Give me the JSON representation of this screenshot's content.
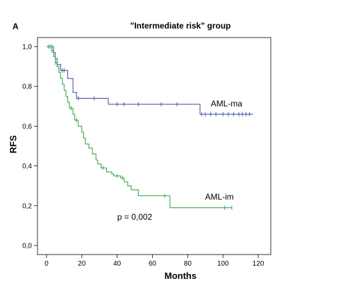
{
  "panel_letter": "A",
  "chart_data": {
    "type": "line",
    "title": "\"Intermediate risk\" group",
    "xlabel": "Months",
    "ylabel": "RFS",
    "xlim": [
      0,
      120
    ],
    "ylim": [
      0,
      1
    ],
    "x_ticks": [
      0,
      20,
      40,
      60,
      80,
      100,
      120
    ],
    "y_ticks": [
      0,
      0.2,
      0.4,
      0.6,
      0.8,
      1.0
    ],
    "y_tick_labels": [
      "0,0",
      "0,2",
      "0,4",
      "0,6",
      "0,8",
      "1,0"
    ],
    "grid": false,
    "series": [
      {
        "name": "AML-ma",
        "color": "#4a5aa8",
        "steps": [
          [
            0,
            1.0
          ],
          [
            4,
            0.97
          ],
          [
            5,
            0.94
          ],
          [
            6,
            0.91
          ],
          [
            8,
            0.88
          ],
          [
            12,
            0.84
          ],
          [
            15,
            0.77
          ],
          [
            17,
            0.74
          ],
          [
            35,
            0.71
          ],
          [
            87,
            0.66
          ],
          [
            117,
            0.66
          ]
        ],
        "censored": [
          [
            1,
            1.0
          ],
          [
            2,
            1.0
          ],
          [
            3,
            1.0
          ],
          [
            4,
            0.97
          ],
          [
            6,
            0.91
          ],
          [
            9,
            0.88
          ],
          [
            10,
            0.88
          ],
          [
            18,
            0.74
          ],
          [
            27,
            0.74
          ],
          [
            40,
            0.71
          ],
          [
            44,
            0.71
          ],
          [
            52,
            0.71
          ],
          [
            65,
            0.71
          ],
          [
            74,
            0.71
          ],
          [
            88,
            0.66
          ],
          [
            90,
            0.66
          ],
          [
            93,
            0.66
          ],
          [
            96,
            0.66
          ],
          [
            100,
            0.66
          ],
          [
            103,
            0.66
          ],
          [
            106,
            0.66
          ],
          [
            109,
            0.66
          ],
          [
            111,
            0.66
          ],
          [
            113,
            0.66
          ],
          [
            115,
            0.66
          ]
        ]
      },
      {
        "name": "AML-im",
        "color": "#3aa84a",
        "steps": [
          [
            0,
            1.0
          ],
          [
            3,
            0.98
          ],
          [
            4,
            0.95
          ],
          [
            5,
            0.92
          ],
          [
            6,
            0.9
          ],
          [
            7,
            0.87
          ],
          [
            8,
            0.84
          ],
          [
            9,
            0.81
          ],
          [
            10,
            0.78
          ],
          [
            11,
            0.75
          ],
          [
            12,
            0.72
          ],
          [
            13,
            0.69
          ],
          [
            15,
            0.66
          ],
          [
            16,
            0.63
          ],
          [
            18,
            0.6
          ],
          [
            20,
            0.57
          ],
          [
            21,
            0.54
          ],
          [
            22,
            0.51
          ],
          [
            24,
            0.49
          ],
          [
            26,
            0.46
          ],
          [
            28,
            0.43
          ],
          [
            29,
            0.41
          ],
          [
            31,
            0.39
          ],
          [
            34,
            0.37
          ],
          [
            37,
            0.36
          ],
          [
            38,
            0.35
          ],
          [
            42,
            0.34
          ],
          [
            44,
            0.32
          ],
          [
            46,
            0.3
          ],
          [
            48,
            0.28
          ],
          [
            52,
            0.25
          ],
          [
            70,
            0.19
          ],
          [
            105,
            0.19
          ]
        ],
        "censored": [
          [
            1,
            1.0
          ],
          [
            2,
            1.0
          ],
          [
            3,
            0.98
          ],
          [
            5,
            0.92
          ],
          [
            14,
            0.69
          ],
          [
            17,
            0.63
          ],
          [
            32,
            0.39
          ],
          [
            40,
            0.35
          ],
          [
            43,
            0.34
          ],
          [
            67,
            0.25
          ],
          [
            101,
            0.19
          ],
          [
            105,
            0.19
          ]
        ]
      }
    ],
    "annotations": [
      {
        "text": "AML-ma",
        "x": 102,
        "y": 0.7
      },
      {
        "text": "AML-im",
        "x": 98,
        "y": 0.23
      },
      {
        "text": "p = 0,002",
        "x": 50,
        "y": 0.13
      }
    ]
  }
}
